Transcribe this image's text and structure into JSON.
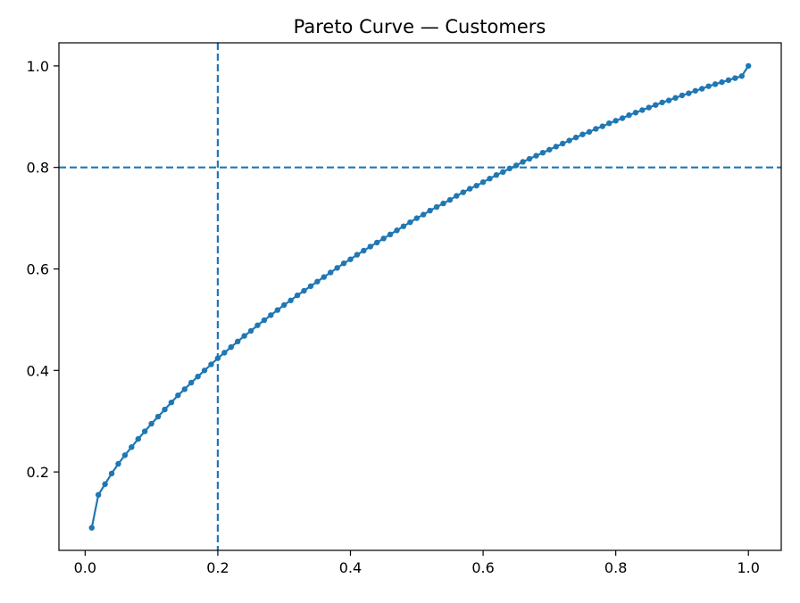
{
  "chart_data": {
    "type": "line",
    "title": "Pareto Curve — Customers",
    "xlabel": "",
    "ylabel": "",
    "xlim": [
      -0.0395,
      1.0495
    ],
    "ylim": [
      0.0455,
      1.0455
    ],
    "grid": false,
    "legend": "none",
    "x_ticks": [
      0.0,
      0.2,
      0.4,
      0.6,
      0.8,
      1.0
    ],
    "x_tick_labels": [
      "0.0",
      "0.2",
      "0.4",
      "0.6",
      "0.8",
      "1.0"
    ],
    "y_ticks": [
      0.2,
      0.4,
      0.6,
      0.8,
      1.0
    ],
    "y_tick_labels": [
      "0.2",
      "0.4",
      "0.6",
      "0.8",
      "1.0"
    ],
    "series": [
      {
        "color": "#1f77b4",
        "marker": "circle",
        "x": [
          0.01,
          0.02,
          0.03,
          0.04,
          0.05,
          0.06,
          0.07,
          0.08,
          0.09,
          0.1,
          0.11,
          0.12,
          0.13,
          0.14,
          0.15,
          0.16,
          0.17,
          0.18,
          0.19,
          0.2,
          0.21,
          0.22,
          0.23,
          0.24,
          0.25,
          0.26,
          0.27,
          0.28,
          0.29,
          0.3,
          0.31,
          0.32,
          0.33,
          0.34,
          0.35,
          0.36,
          0.37,
          0.38,
          0.39,
          0.4,
          0.41,
          0.42,
          0.43,
          0.44,
          0.45,
          0.46,
          0.47,
          0.48,
          0.49,
          0.5,
          0.51,
          0.52,
          0.53,
          0.54,
          0.55,
          0.56,
          0.57,
          0.58,
          0.59,
          0.6,
          0.61,
          0.62,
          0.63,
          0.64,
          0.65,
          0.66,
          0.67,
          0.68,
          0.69,
          0.7,
          0.71,
          0.72,
          0.73,
          0.74,
          0.75,
          0.76,
          0.77,
          0.78,
          0.79,
          0.8,
          0.81,
          0.82,
          0.83,
          0.84,
          0.85,
          0.86,
          0.87,
          0.88,
          0.89,
          0.9,
          0.91,
          0.92,
          0.93,
          0.94,
          0.95,
          0.96,
          0.97,
          0.98,
          0.99,
          1.0
        ],
        "y": [
          0.09,
          0.155,
          0.176,
          0.197,
          0.216,
          0.233,
          0.249,
          0.265,
          0.28,
          0.295,
          0.309,
          0.323,
          0.337,
          0.351,
          0.363,
          0.376,
          0.388,
          0.4,
          0.412,
          0.424,
          0.435,
          0.446,
          0.457,
          0.468,
          0.478,
          0.489,
          0.499,
          0.509,
          0.519,
          0.529,
          0.538,
          0.548,
          0.557,
          0.566,
          0.575,
          0.584,
          0.593,
          0.602,
          0.611,
          0.619,
          0.628,
          0.636,
          0.644,
          0.652,
          0.66,
          0.668,
          0.676,
          0.684,
          0.692,
          0.7,
          0.707,
          0.715,
          0.722,
          0.729,
          0.736,
          0.744,
          0.751,
          0.758,
          0.764,
          0.771,
          0.778,
          0.785,
          0.791,
          0.798,
          0.804,
          0.811,
          0.817,
          0.823,
          0.829,
          0.835,
          0.841,
          0.847,
          0.853,
          0.859,
          0.865,
          0.87,
          0.876,
          0.881,
          0.887,
          0.892,
          0.897,
          0.903,
          0.908,
          0.913,
          0.918,
          0.923,
          0.928,
          0.932,
          0.937,
          0.942,
          0.946,
          0.951,
          0.955,
          0.96,
          0.964,
          0.968,
          0.972,
          0.976,
          0.98,
          1.0
        ]
      }
    ],
    "reference_lines": [
      {
        "orientation": "vertical",
        "x": 0.2,
        "style": "dashed",
        "color": "#1f77b4"
      },
      {
        "orientation": "horizontal",
        "y": 0.8,
        "style": "dashed",
        "color": "#1f77b4"
      }
    ]
  }
}
